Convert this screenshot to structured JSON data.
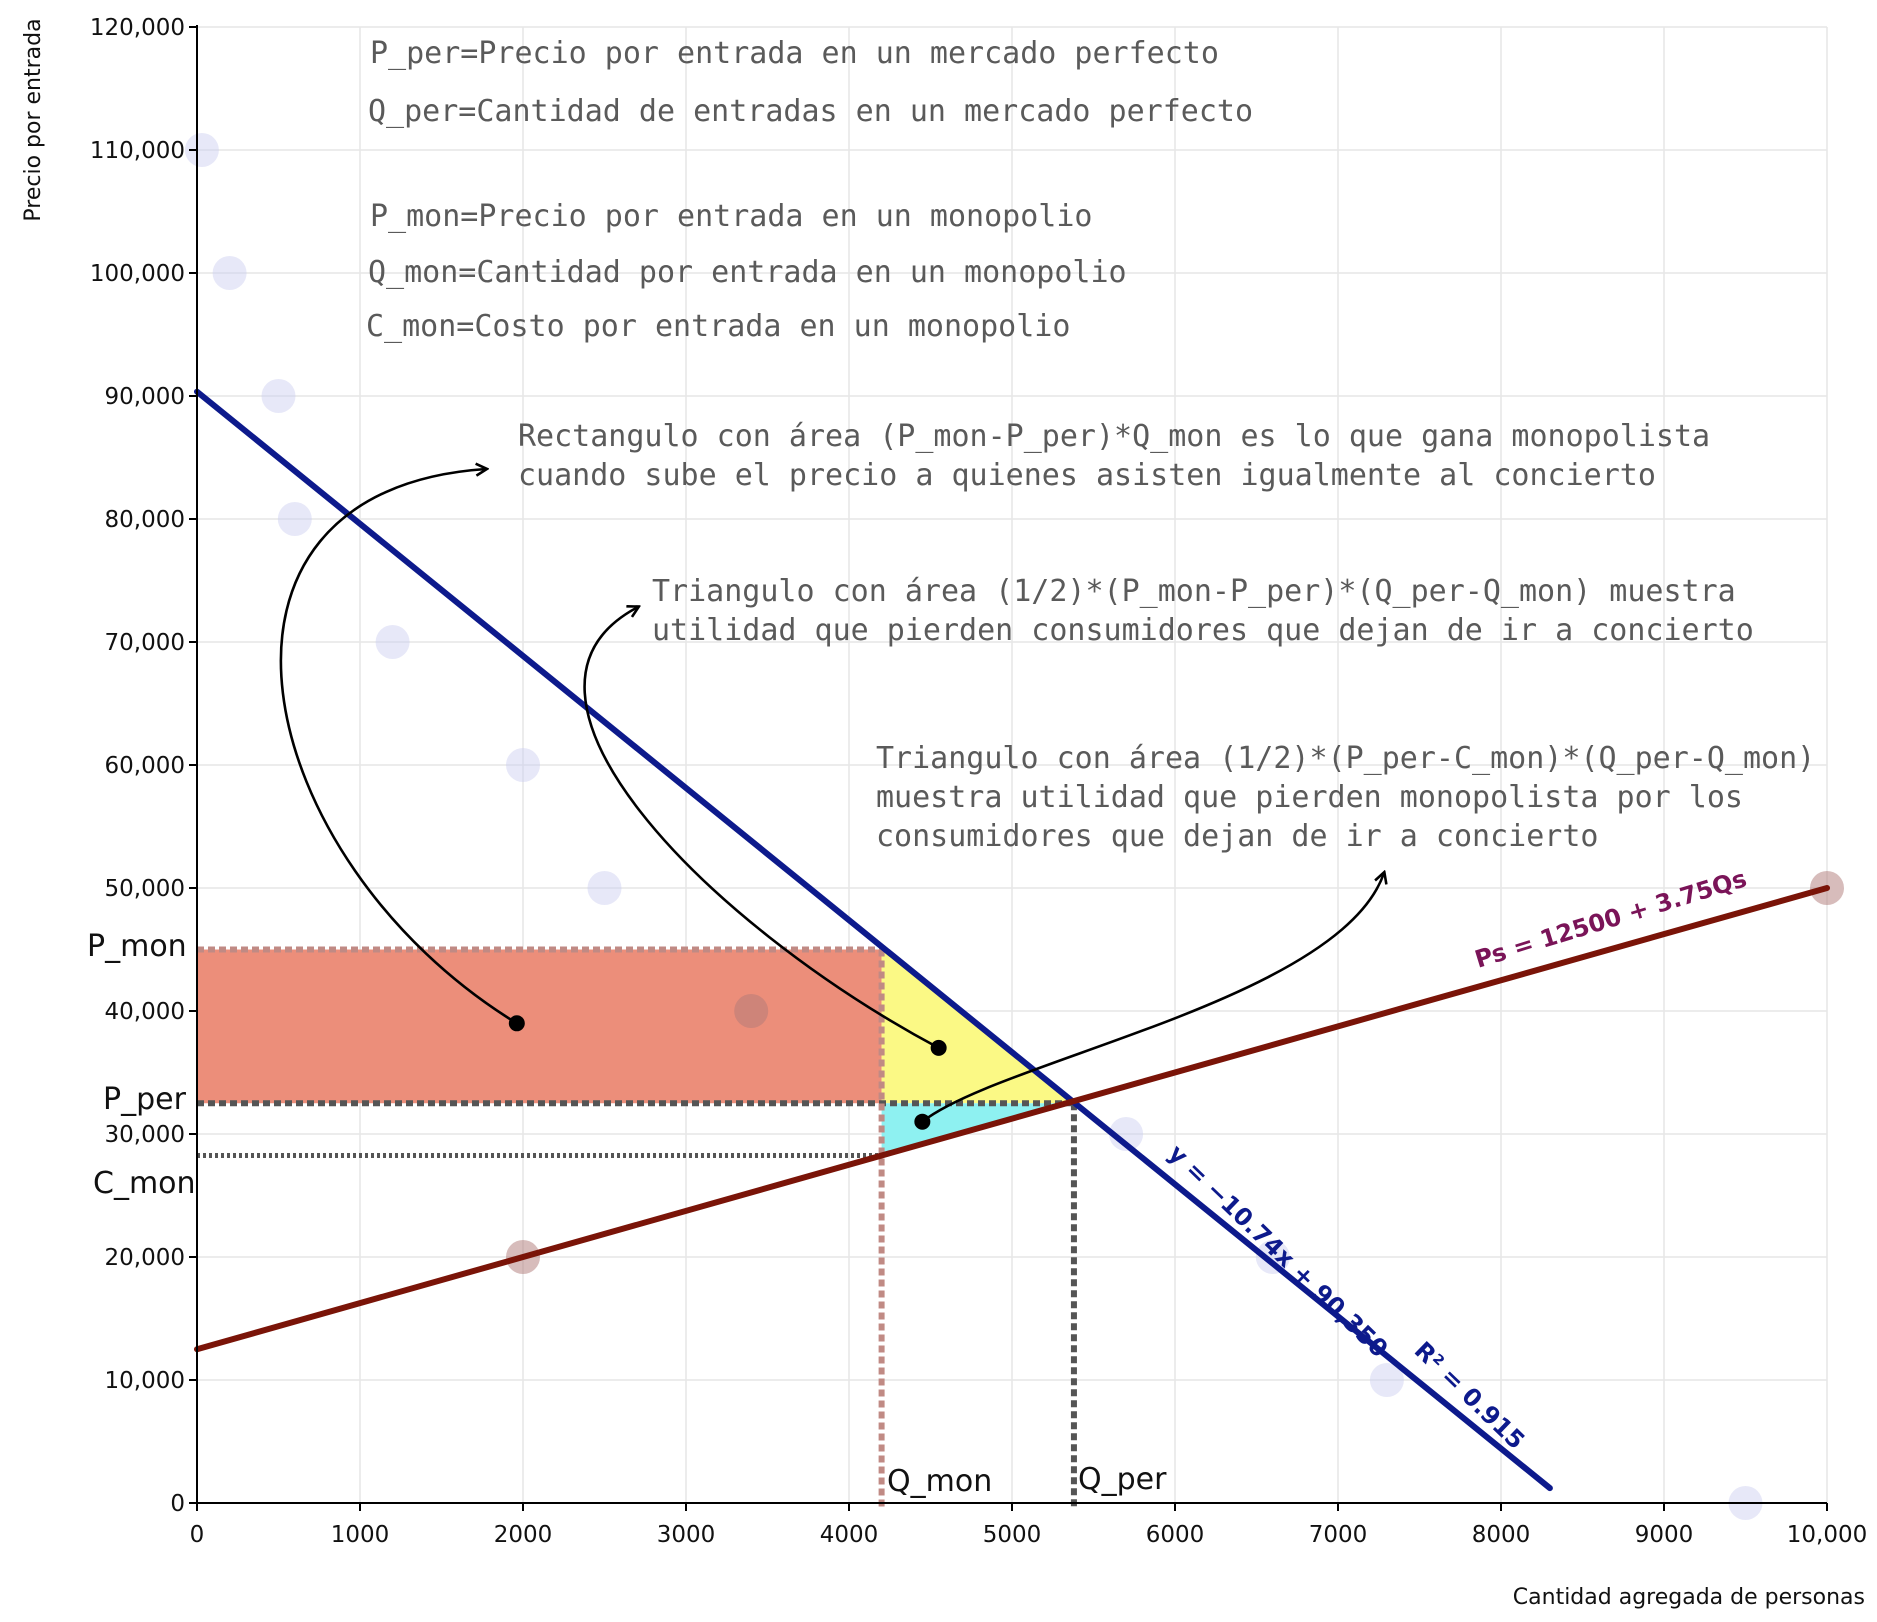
{
  "chart_data": {
    "type": "scatter",
    "xlabel": "Cantidad agregada de personas",
    "ylabel": "Precio por entrada",
    "xlim": [
      0,
      10000
    ],
    "ylim": [
      0,
      120000
    ],
    "grid": true,
    "x_ticks": [
      0,
      1000,
      2000,
      3000,
      4000,
      5000,
      6000,
      7000,
      8000,
      9000,
      10000
    ],
    "x_tick_labels": [
      "0",
      "1000",
      "2000",
      "3000",
      "4000",
      "5000",
      "6000",
      "7000",
      "8000",
      "9000",
      "10,000"
    ],
    "y_ticks": [
      0,
      10000,
      20000,
      30000,
      40000,
      50000,
      60000,
      70000,
      80000,
      90000,
      100000,
      110000,
      120000
    ],
    "y_tick_labels": [
      "0",
      "10,000",
      "20,000",
      "30,000",
      "40,000",
      "50,000",
      "60,000",
      "70,000",
      "80,000",
      "90,000",
      "100,000",
      "110,000",
      "120,000"
    ],
    "demand_points": [
      [
        30,
        110000
      ],
      [
        200,
        100000
      ],
      [
        500,
        90000
      ],
      [
        600,
        80000
      ],
      [
        1200,
        70000
      ],
      [
        2000,
        60000
      ],
      [
        2500,
        50000
      ],
      [
        5700,
        30000
      ],
      [
        6600,
        20000
      ],
      [
        7300,
        10000
      ],
      [
        9500,
        0
      ]
    ],
    "supply_points": [
      [
        2000,
        20000
      ],
      [
        3400,
        40000
      ],
      [
        10000,
        50000
      ]
    ],
    "demand_line": {
      "label": "y = −10.74x + 90,350",
      "r2_label": "R² = 0.915",
      "slope": -10.74,
      "intercept": 90350,
      "x_end": 8300,
      "color": "#0d1a8c"
    },
    "supply_line": {
      "label": "Ps = 12500 + 3.75Qs",
      "slope": 3.75,
      "intercept": 12500,
      "x_end": 10000,
      "color": "#7a1408"
    },
    "guides": {
      "P_mon": {
        "label": "P_mon",
        "value": 45000
      },
      "P_per": {
        "label": "P_per",
        "value": 32500
      },
      "C_mon": {
        "label": "C_mon",
        "value": 28250
      },
      "Q_mon": {
        "label": "Q_mon",
        "value": 4200
      },
      "Q_per": {
        "label": "Q_per",
        "value": 5380
      }
    },
    "regions": {
      "rectangle_color": "#ec8e7a",
      "yellow_triangle_color": "#fbf985",
      "cyan_triangle_color": "#8ef1f1"
    },
    "definitions": [
      "P_per=Precio por entrada en un mercado perfecto",
      "Q_per=Cantidad de entradas en un mercado perfecto",
      "P_mon=Precio por entrada en un monopolio",
      "Q_mon=Cantidad por entrada en un monopolio",
      "C_mon=Costo por entrada en un monopolio"
    ],
    "annotations": {
      "rectangle": [
        "Rectangulo con área (P_mon-P_per)*Q_mon es lo que gana monopolista",
        "cuando sube el precio a quienes asisten igualmente al concierto"
      ],
      "consumer_loss": [
        "Triangulo con área (1/2)*(P_mon-P_per)*(Q_per-Q_mon) muestra",
        "utilidad que pierden consumidores que dejan de ir a concierto"
      ],
      "producer_loss": [
        "Triangulo con área (1/2)*(P_per-C_mon)*(Q_per-Q_mon)",
        "muestra utilidad que pierden monopolista por los",
        "consumidores que dejan de ir a concierto"
      ]
    }
  }
}
